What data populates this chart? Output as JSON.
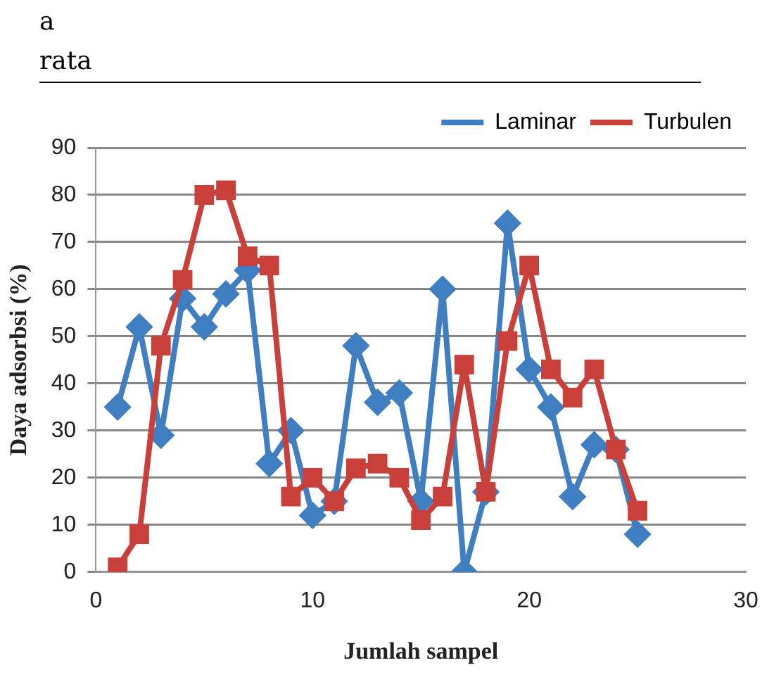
{
  "chart_data": {
    "type": "line",
    "annotations": [
      "a",
      "rata"
    ],
    "xlabel": "Jumlah sampel",
    "ylabel": "Daya adsorbsi (%)",
    "x": [
      1,
      2,
      3,
      4,
      5,
      6,
      7,
      8,
      9,
      10,
      11,
      12,
      13,
      14,
      15,
      16,
      17,
      18,
      19,
      20,
      21,
      22,
      23,
      24,
      25
    ],
    "xlim": [
      0,
      30
    ],
    "xticks": [
      0,
      10,
      20,
      30
    ],
    "ylim": [
      0,
      90
    ],
    "yticks": [
      0,
      10,
      20,
      30,
      40,
      50,
      60,
      70,
      80,
      90
    ],
    "grid": "y",
    "legend": "top right",
    "line_style": "solid",
    "series": [
      {
        "name": "Laminar",
        "color": "#3f7fc1",
        "marker": "diamond",
        "values": [
          35,
          52,
          29,
          58,
          52,
          59,
          64,
          23,
          30,
          12,
          15,
          48,
          36,
          38,
          15,
          60,
          0,
          17,
          74,
          43,
          35,
          16,
          27,
          26,
          8
        ]
      },
      {
        "name": "Turbulen",
        "color": "#c9403a",
        "marker": "square",
        "values": [
          1,
          8,
          48,
          62,
          80,
          81,
          67,
          65,
          16,
          20,
          15,
          22,
          23,
          20,
          11,
          16,
          44,
          17,
          49,
          65,
          43,
          37,
          43,
          26,
          13
        ]
      }
    ]
  }
}
